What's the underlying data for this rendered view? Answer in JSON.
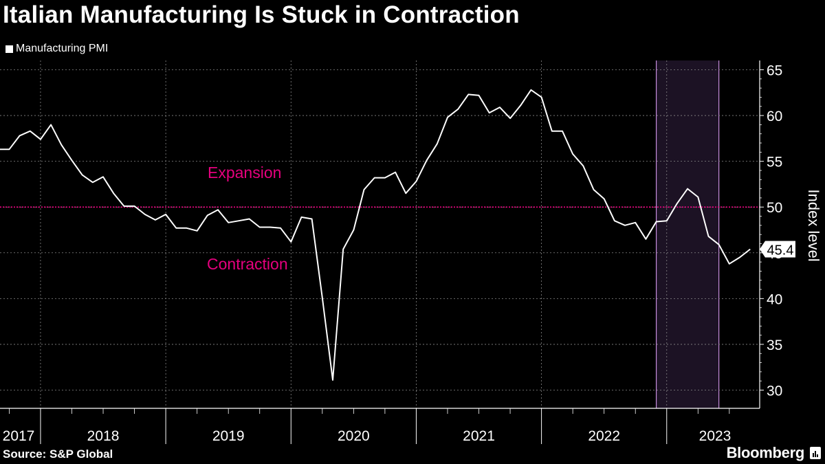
{
  "header": {
    "title": "Italian Manufacturing Is Stuck in Contraction"
  },
  "legend": {
    "label": "Manufacturing PMI"
  },
  "footer": {
    "source": "Source: S&P Global",
    "brand": "Bloomberg"
  },
  "colors": {
    "background": "#000000",
    "line": "#ffffff",
    "threshold": "#e6007e",
    "shade": "#1c1224",
    "shade_edge": "#c98fe0",
    "grid": "#8a8a8a"
  },
  "chart_data": {
    "type": "line",
    "title": "Italian Manufacturing Is Stuck in Contraction",
    "xlabel": "",
    "ylabel": "Index level",
    "ylim": [
      28,
      66
    ],
    "yticks": [
      30,
      35,
      40,
      45,
      50,
      55,
      60,
      65
    ],
    "year_labels": [
      "2017",
      "2018",
      "2019",
      "2020",
      "2021",
      "2022",
      "2023"
    ],
    "threshold": {
      "value": 50,
      "above_label": "Expansion",
      "below_label": "Contraction"
    },
    "last_value_label": "45.4",
    "shaded_period": {
      "from": "2022-12",
      "to": "2023-06"
    },
    "series": [
      {
        "name": "Manufacturing PMI",
        "start": "2017-09",
        "values": [
          56.3,
          56.3,
          57.8,
          58.3,
          57.4,
          59.0,
          56.8,
          55.1,
          53.5,
          52.7,
          53.3,
          51.5,
          50.1,
          50.1,
          49.2,
          48.6,
          49.2,
          47.7,
          47.7,
          47.4,
          49.1,
          49.7,
          48.3,
          48.5,
          48.7,
          47.8,
          47.8,
          47.7,
          46.2,
          48.9,
          48.7,
          40.1,
          31.1,
          45.4,
          47.5,
          51.9,
          53.2,
          53.2,
          53.8,
          51.5,
          52.8,
          55.1,
          56.9,
          59.8,
          60.7,
          62.3,
          62.2,
          60.3,
          60.9,
          59.7,
          61.1,
          62.8,
          62.0,
          58.3,
          58.3,
          55.8,
          54.5,
          51.9,
          50.9,
          48.5,
          48.0,
          48.3,
          46.5,
          48.4,
          48.5,
          50.4,
          52.0,
          51.1,
          46.8,
          45.9,
          43.8,
          44.5,
          45.4
        ]
      }
    ]
  }
}
